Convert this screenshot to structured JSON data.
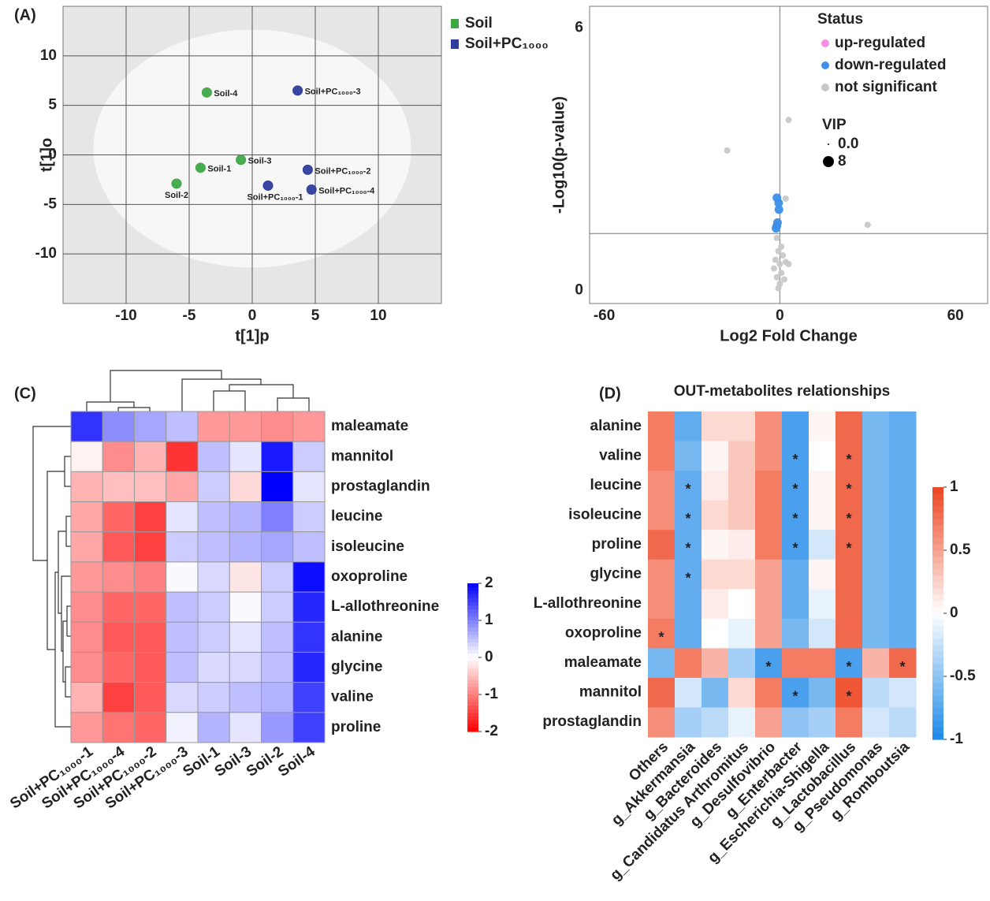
{
  "chart_data": [
    {
      "type": "scatter",
      "panel": "(A)",
      "x_label": "t[1]p",
      "y_label": "t[1]o",
      "xlim": [
        -15,
        15
      ],
      "ylim": [
        -15,
        15
      ],
      "xticks": [
        -10,
        -5,
        0,
        5,
        10
      ],
      "yticks": [
        -10,
        -5,
        0,
        5,
        10
      ],
      "grid": true,
      "confidence_ellipse": true,
      "legend": "top-right",
      "series": [
        {
          "name": "Soil",
          "color": "#3fa845",
          "labels": [
            "Soil-1",
            "Soil-2",
            "Soil-3",
            "Soil-4"
          ],
          "x": [
            -4.1,
            -6.0,
            -0.9,
            -3.6
          ],
          "values": [
            -1.3,
            -2.9,
            -0.5,
            6.3
          ]
        },
        {
          "name": "Soil+PC₁₀₀₀",
          "color": "#2e3d9e",
          "labels": [
            "Soil+PC₁₀₀₀-1",
            "Soil+PC₁₀₀₀-2",
            "Soil+PC₁₀₀₀-3",
            "Soil+PC₁₀₀₀-4"
          ],
          "x": [
            1.25,
            4.4,
            3.6,
            4.7
          ],
          "values": [
            -3.1,
            -1.5,
            6.5,
            -3.5
          ]
        }
      ]
    },
    {
      "type": "scatter",
      "panel": "(B)",
      "x_label": "Log2 Fold Change",
      "y_label": "-Log10(p-value)",
      "xlim": [
        -65,
        71
      ],
      "ylim": [
        -0.3,
        6.5
      ],
      "xticks": [
        -60,
        0,
        60
      ],
      "yticks": [
        0,
        6
      ],
      "threshold_x": 0,
      "threshold_y": 1.3,
      "legend_title": "Status",
      "legend": "top-right",
      "size_legend": {
        "title": "VIP",
        "entries": [
          {
            "value": 0,
            "label": "0.0"
          },
          8
        ]
      },
      "series": [
        {
          "name": "up-regulated",
          "color": "#f48fe0",
          "x": [],
          "values": []
        },
        {
          "name": "down-regulated",
          "color": "#3d8fe8",
          "x": [
            -1,
            -0.4,
            -0.3,
            -0.8,
            -1.3,
            -1
          ],
          "values": [
            2.12,
            2.0,
            1.85,
            1.55,
            1.42,
            1.48
          ]
        },
        {
          "name": "not significant",
          "color": "#c8c8c8",
          "x": [
            -1,
            0.5,
            -0.5,
            1,
            -1.5,
            0,
            2,
            3,
            -2,
            0.5,
            -1,
            1.5,
            0,
            -0.5,
            3,
            2,
            -18,
            30
          ],
          "values": [
            1.2,
            1.0,
            0.9,
            0.8,
            0.7,
            0.6,
            0.65,
            0.6,
            0.5,
            0.4,
            0.3,
            0.25,
            0.15,
            0.05,
            3.9,
            2.1,
            3.2,
            1.5
          ]
        }
      ]
    },
    {
      "type": "heatmap",
      "panel": "(C)",
      "dendrogram": true,
      "columns": [
        "Soil+PC₁₀₀₀-1",
        "Soil+PC₁₀₀₀-4",
        "Soil+PC₁₀₀₀-2",
        "Soil+PC₁₀₀₀-3",
        "Soil-1",
        "Soil-3",
        "Soil-2",
        "Soil-4"
      ],
      "rows": [
        "maleamate",
        "mannitol",
        "prostaglandin",
        "leucine",
        "isoleucine",
        "oxoproline",
        "L-allothreonine",
        "alanine",
        "glycine",
        "valine",
        "proline"
      ],
      "values": [
        [
          1.6,
          0.9,
          0.7,
          0.5,
          -0.8,
          -0.8,
          -0.9,
          -0.8
        ],
        [
          -0.1,
          -0.9,
          -0.6,
          -1.6,
          0.5,
          0.2,
          1.8,
          0.4
        ],
        [
          -0.6,
          -0.5,
          -0.5,
          -0.7,
          0.4,
          -0.3,
          2.0,
          0.2
        ],
        [
          -0.7,
          -1.2,
          -1.5,
          0.2,
          0.5,
          0.6,
          1.0,
          0.4
        ],
        [
          -0.7,
          -1.3,
          -1.5,
          0.4,
          0.5,
          0.6,
          0.7,
          0.5
        ],
        [
          -0.8,
          -0.9,
          -1.0,
          0.05,
          0.3,
          -0.2,
          0.4,
          1.9
        ],
        [
          -0.9,
          -1.2,
          -1.2,
          0.5,
          0.4,
          0.05,
          0.4,
          1.7
        ],
        [
          -0.9,
          -1.3,
          -1.3,
          0.5,
          0.4,
          0.2,
          0.5,
          1.6
        ],
        [
          -0.9,
          -1.2,
          -1.3,
          0.5,
          0.3,
          0.3,
          0.5,
          1.7
        ],
        [
          -0.6,
          -1.5,
          -1.3,
          0.3,
          0.4,
          0.5,
          0.6,
          1.5
        ],
        [
          -0.8,
          -1.1,
          -1.2,
          0.1,
          0.6,
          0.2,
          0.8,
          1.5
        ]
      ],
      "zlim": [
        -2,
        2
      ],
      "zticks": [
        2,
        1,
        0,
        -1,
        -2
      ],
      "colorscale": [
        "#ff0000",
        "#ffffff",
        "#0000ff"
      ]
    },
    {
      "type": "heatmap",
      "panel": "(D)",
      "title": "OUT-metabolites relationships",
      "columns": [
        "Others",
        "g_Akkermansia",
        "g_Bacteroides",
        "g_Candidatus Arthromitus",
        "g_Desulfovibrio",
        "g_Enterbacter",
        "g_Escherichia-Shigella",
        "g_Lactobacillus",
        "g_Pseudomonas",
        "g_Romboutsia"
      ],
      "rows": [
        "alanine",
        "valine",
        "leucine",
        "isoleucine",
        "proline",
        "glycine",
        "L-allothreonine",
        "oxoproline",
        "maleamate",
        "mannitol",
        "prostaglandin"
      ],
      "values": [
        [
          0.7,
          -0.7,
          0.2,
          0.2,
          0.6,
          -0.8,
          0.05,
          0.8,
          -0.6,
          -0.7
        ],
        [
          0.7,
          -0.6,
          0.05,
          0.3,
          0.6,
          -0.8,
          0.0,
          0.8,
          -0.6,
          -0.7
        ],
        [
          0.6,
          -0.7,
          0.1,
          0.3,
          0.7,
          -0.8,
          0.05,
          0.8,
          -0.6,
          -0.7
        ],
        [
          0.6,
          -0.7,
          0.2,
          0.3,
          0.7,
          -0.8,
          0.05,
          0.8,
          -0.6,
          -0.7
        ],
        [
          0.8,
          -0.7,
          0.05,
          0.1,
          0.7,
          -0.8,
          -0.2,
          0.8,
          -0.6,
          -0.7
        ],
        [
          0.6,
          -0.7,
          0.2,
          0.2,
          0.5,
          -0.7,
          0.05,
          0.8,
          -0.6,
          -0.7
        ],
        [
          0.6,
          -0.7,
          0.1,
          0.0,
          0.5,
          -0.7,
          -0.1,
          0.8,
          -0.6,
          -0.7
        ],
        [
          0.7,
          -0.7,
          0.0,
          -0.1,
          0.5,
          -0.6,
          -0.2,
          0.8,
          -0.6,
          -0.7
        ],
        [
          -0.6,
          0.7,
          0.4,
          -0.4,
          -0.8,
          0.7,
          0.7,
          -0.8,
          0.4,
          0.8
        ],
        [
          0.8,
          -0.2,
          -0.6,
          0.2,
          0.7,
          -0.8,
          -0.6,
          0.9,
          -0.3,
          -0.2
        ],
        [
          0.6,
          -0.4,
          -0.3,
          -0.1,
          0.5,
          -0.5,
          -0.4,
          0.7,
          -0.2,
          -0.3
        ]
      ],
      "annotations": [
        {
          "row": 1,
          "col": 5,
          "text": "*"
        },
        {
          "row": 1,
          "col": 7,
          "text": "*"
        },
        {
          "row": 2,
          "col": 1,
          "text": "*"
        },
        {
          "row": 2,
          "col": 5,
          "text": "*"
        },
        {
          "row": 2,
          "col": 7,
          "text": "*"
        },
        {
          "row": 3,
          "col": 1,
          "text": "*"
        },
        {
          "row": 3,
          "col": 5,
          "text": "*"
        },
        {
          "row": 3,
          "col": 7,
          "text": "*"
        },
        {
          "row": 4,
          "col": 1,
          "text": "*"
        },
        {
          "row": 4,
          "col": 5,
          "text": "*"
        },
        {
          "row": 4,
          "col": 7,
          "text": "*"
        },
        {
          "row": 5,
          "col": 1,
          "text": "*"
        },
        {
          "row": 7,
          "col": 0,
          "text": "*"
        },
        {
          "row": 8,
          "col": 4,
          "text": "*"
        },
        {
          "row": 8,
          "col": 7,
          "text": "*"
        },
        {
          "row": 8,
          "col": 9,
          "text": "*"
        },
        {
          "row": 9,
          "col": 5,
          "text": "*"
        },
        {
          "row": 9,
          "col": 7,
          "text": "*"
        }
      ],
      "zlim": [
        -1,
        1
      ],
      "zticks": [
        1,
        0.5,
        0,
        -0.5,
        -1
      ],
      "colorscale": [
        "#1e88e8",
        "#ffffff",
        "#ee4420"
      ]
    }
  ]
}
